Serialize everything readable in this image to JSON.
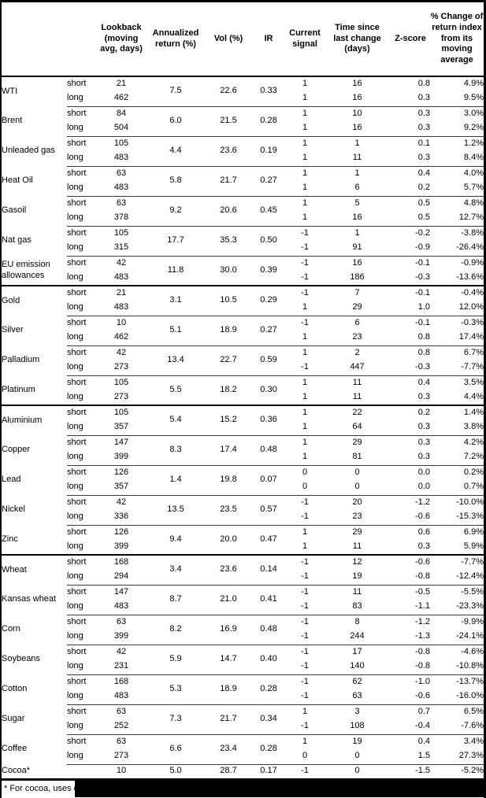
{
  "table": {
    "columns": {
      "name": "",
      "term": "",
      "lookback": "Lookback\n(moving\navg, days)",
      "annualized": "Annualized\nreturn (%)",
      "vol": "Vol (%)",
      "ir": "IR",
      "signal": "Current\nsignal",
      "time_since": "Time since\nlast change\n(days)",
      "zscore": "Z-score",
      "pct_change": "% Change of\nreturn index\nfrom its\nmoving\naverage"
    },
    "sections": [
      {
        "rows": [
          {
            "name": "WTI",
            "annualized": "7.5",
            "vol": "22.6",
            "ir": "0.33",
            "legs": [
              {
                "term": "short",
                "lookback": "21",
                "signal": "1",
                "time_since": "16",
                "zscore": "0.8",
                "pct_change": "4.9%"
              },
              {
                "term": "long",
                "lookback": "462",
                "signal": "1",
                "time_since": "16",
                "zscore": "0.3",
                "pct_change": "9.5%"
              }
            ]
          },
          {
            "name": "Brent",
            "annualized": "6.0",
            "vol": "21.5",
            "ir": "0.28",
            "legs": [
              {
                "term": "short",
                "lookback": "84",
                "signal": "1",
                "time_since": "10",
                "zscore": "0.3",
                "pct_change": "3.0%"
              },
              {
                "term": "long",
                "lookback": "504",
                "signal": "1",
                "time_since": "16",
                "zscore": "0.3",
                "pct_change": "9.2%"
              }
            ]
          },
          {
            "name": "Unleaded gas",
            "annualized": "4.4",
            "vol": "23.6",
            "ir": "0.19",
            "legs": [
              {
                "term": "short",
                "lookback": "105",
                "signal": "1",
                "time_since": "1",
                "zscore": "0.1",
                "pct_change": "1.2%"
              },
              {
                "term": "long",
                "lookback": "483",
                "signal": "1",
                "time_since": "11",
                "zscore": "0.3",
                "pct_change": "8.4%"
              }
            ]
          },
          {
            "name": "Heat Oil",
            "annualized": "5.8",
            "vol": "21.7",
            "ir": "0.27",
            "legs": [
              {
                "term": "short",
                "lookback": "63",
                "signal": "1",
                "time_since": "1",
                "zscore": "0.4",
                "pct_change": "4.0%"
              },
              {
                "term": "long",
                "lookback": "483",
                "signal": "1",
                "time_since": "6",
                "zscore": "0.2",
                "pct_change": "5.7%"
              }
            ]
          },
          {
            "name": "Gasoil",
            "annualized": "9.2",
            "vol": "20.6",
            "ir": "0.45",
            "legs": [
              {
                "term": "short",
                "lookback": "63",
                "signal": "1",
                "time_since": "5",
                "zscore": "0.5",
                "pct_change": "4.8%"
              },
              {
                "term": "long",
                "lookback": "378",
                "signal": "1",
                "time_since": "16",
                "zscore": "0.5",
                "pct_change": "12.7%"
              }
            ]
          },
          {
            "name": "Nat gas",
            "annualized": "17.7",
            "vol": "35.3",
            "ir": "0.50",
            "legs": [
              {
                "term": "short",
                "lookback": "105",
                "signal": "-1",
                "time_since": "1",
                "zscore": "-0.2",
                "pct_change": "-3.8%"
              },
              {
                "term": "long",
                "lookback": "315",
                "signal": "-1",
                "time_since": "91",
                "zscore": "-0.9",
                "pct_change": "-26.4%"
              }
            ]
          },
          {
            "name": "EU emission allowances",
            "annualized": "11.8",
            "vol": "30.0",
            "ir": "0.39",
            "legs": [
              {
                "term": "short",
                "lookback": "42",
                "signal": "-1",
                "time_since": "16",
                "zscore": "-0.1",
                "pct_change": "-0.9%"
              },
              {
                "term": "long",
                "lookback": "483",
                "signal": "-1",
                "time_since": "186",
                "zscore": "-0.3",
                "pct_change": "-13.6%"
              }
            ]
          }
        ]
      },
      {
        "rows": [
          {
            "name": "Gold",
            "annualized": "3.1",
            "vol": "10.5",
            "ir": "0.29",
            "legs": [
              {
                "term": "short",
                "lookback": "21",
                "signal": "-1",
                "time_since": "7",
                "zscore": "-0.1",
                "pct_change": "-0.4%"
              },
              {
                "term": "long",
                "lookback": "483",
                "signal": "1",
                "time_since": "29",
                "zscore": "1.0",
                "pct_change": "12.0%"
              }
            ]
          },
          {
            "name": "Silver",
            "annualized": "5.1",
            "vol": "18.9",
            "ir": "0.27",
            "legs": [
              {
                "term": "short",
                "lookback": "10",
                "signal": "-1",
                "time_since": "6",
                "zscore": "-0.1",
                "pct_change": "-0.3%"
              },
              {
                "term": "long",
                "lookback": "462",
                "signal": "1",
                "time_since": "23",
                "zscore": "0.8",
                "pct_change": "17.4%"
              }
            ]
          },
          {
            "name": "Palladium",
            "annualized": "13.4",
            "vol": "22.7",
            "ir": "0.59",
            "legs": [
              {
                "term": "short",
                "lookback": "42",
                "signal": "1",
                "time_since": "2",
                "zscore": "0.8",
                "pct_change": "6.7%"
              },
              {
                "term": "long",
                "lookback": "273",
                "signal": "-1",
                "time_since": "447",
                "zscore": "-0.3",
                "pct_change": "-7.7%"
              }
            ]
          },
          {
            "name": "Platinum",
            "annualized": "5.5",
            "vol": "18.2",
            "ir": "0.30",
            "legs": [
              {
                "term": "short",
                "lookback": "105",
                "signal": "1",
                "time_since": "11",
                "zscore": "0.4",
                "pct_change": "3.5%"
              },
              {
                "term": "long",
                "lookback": "273",
                "signal": "1",
                "time_since": "11",
                "zscore": "0.3",
                "pct_change": "4.4%"
              }
            ]
          }
        ]
      },
      {
        "rows": [
          {
            "name": "Aluminium",
            "annualized": "5.4",
            "vol": "15.2",
            "ir": "0.36",
            "legs": [
              {
                "term": "short",
                "lookback": "105",
                "signal": "1",
                "time_since": "22",
                "zscore": "0.2",
                "pct_change": "1.4%"
              },
              {
                "term": "long",
                "lookback": "357",
                "signal": "1",
                "time_since": "64",
                "zscore": "0.3",
                "pct_change": "3.8%"
              }
            ]
          },
          {
            "name": "Copper",
            "annualized": "8.3",
            "vol": "17.4",
            "ir": "0.48",
            "legs": [
              {
                "term": "short",
                "lookback": "147",
                "signal": "1",
                "time_since": "29",
                "zscore": "0.3",
                "pct_change": "4.2%"
              },
              {
                "term": "long",
                "lookback": "399",
                "signal": "1",
                "time_since": "81",
                "zscore": "0.3",
                "pct_change": "7.2%"
              }
            ]
          },
          {
            "name": "Lead",
            "annualized": "1.4",
            "vol": "19.8",
            "ir": "0.07",
            "legs": [
              {
                "term": "short",
                "lookback": "126",
                "signal": "0",
                "time_since": "0",
                "zscore": "0.0",
                "pct_change": "0.2%"
              },
              {
                "term": "long",
                "lookback": "357",
                "signal": "0",
                "time_since": "0",
                "zscore": "0.0",
                "pct_change": "0.7%"
              }
            ]
          },
          {
            "name": "Nickel",
            "annualized": "13.5",
            "vol": "23.5",
            "ir": "0.57",
            "legs": [
              {
                "term": "short",
                "lookback": "42",
                "signal": "-1",
                "time_since": "20",
                "zscore": "-1.2",
                "pct_change": "-10.0%"
              },
              {
                "term": "long",
                "lookback": "336",
                "signal": "-1",
                "time_since": "23",
                "zscore": "-0.6",
                "pct_change": "-15.3%"
              }
            ]
          },
          {
            "name": "Zinc",
            "annualized": "9.4",
            "vol": "20.0",
            "ir": "0.47",
            "legs": [
              {
                "term": "short",
                "lookback": "126",
                "signal": "1",
                "time_since": "29",
                "zscore": "0.6",
                "pct_change": "6.9%"
              },
              {
                "term": "long",
                "lookback": "399",
                "signal": "1",
                "time_since": "11",
                "zscore": "0.3",
                "pct_change": "5.9%"
              }
            ]
          }
        ]
      },
      {
        "rows": [
          {
            "name": "Wheat",
            "annualized": "3.4",
            "vol": "23.6",
            "ir": "0.14",
            "legs": [
              {
                "term": "short",
                "lookback": "168",
                "signal": "-1",
                "time_since": "12",
                "zscore": "-0.6",
                "pct_change": "-7.7%"
              },
              {
                "term": "long",
                "lookback": "294",
                "signal": "-1",
                "time_since": "19",
                "zscore": "-0.8",
                "pct_change": "-12.4%"
              }
            ]
          },
          {
            "name": "Kansas wheat",
            "annualized": "8.7",
            "vol": "21.0",
            "ir": "0.41",
            "legs": [
              {
                "term": "short",
                "lookback": "147",
                "signal": "-1",
                "time_since": "11",
                "zscore": "-0.5",
                "pct_change": "-5.5%"
              },
              {
                "term": "long",
                "lookback": "483",
                "signal": "-1",
                "time_since": "83",
                "zscore": "-1.1",
                "pct_change": "-23.3%"
              }
            ]
          },
          {
            "name": "Corn",
            "annualized": "8.2",
            "vol": "16.9",
            "ir": "0.48",
            "legs": [
              {
                "term": "short",
                "lookback": "63",
                "signal": "-1",
                "time_since": "8",
                "zscore": "-1.2",
                "pct_change": "-9.9%"
              },
              {
                "term": "long",
                "lookback": "399",
                "signal": "-1",
                "time_since": "244",
                "zscore": "-1.3",
                "pct_change": "-24.1%"
              }
            ]
          },
          {
            "name": "Soybeans",
            "annualized": "5.9",
            "vol": "14.7",
            "ir": "0.40",
            "legs": [
              {
                "term": "short",
                "lookback": "42",
                "signal": "-1",
                "time_since": "17",
                "zscore": "-0.8",
                "pct_change": "-4.6%"
              },
              {
                "term": "long",
                "lookback": "231",
                "signal": "-1",
                "time_since": "140",
                "zscore": "-0.8",
                "pct_change": "-10.8%"
              }
            ]
          },
          {
            "name": "Cotton",
            "annualized": "5.3",
            "vol": "18.9",
            "ir": "0.28",
            "legs": [
              {
                "term": "short",
                "lookback": "168",
                "signal": "-1",
                "time_since": "62",
                "zscore": "-1.0",
                "pct_change": "-13.7%"
              },
              {
                "term": "long",
                "lookback": "483",
                "signal": "-1",
                "time_since": "63",
                "zscore": "-0.6",
                "pct_change": "-16.0%"
              }
            ]
          },
          {
            "name": "Sugar",
            "annualized": "7.3",
            "vol": "21.7",
            "ir": "0.34",
            "legs": [
              {
                "term": "short",
                "lookback": "63",
                "signal": "1",
                "time_since": "3",
                "zscore": "0.7",
                "pct_change": "6.5%"
              },
              {
                "term": "long",
                "lookback": "252",
                "signal": "-1",
                "time_since": "108",
                "zscore": "-0.4",
                "pct_change": "-7.6%"
              }
            ]
          },
          {
            "name": "Coffee",
            "annualized": "6.6",
            "vol": "23.4",
            "ir": "0.28",
            "legs": [
              {
                "term": "short",
                "lookback": "63",
                "signal": "1",
                "time_since": "19",
                "zscore": "0.4",
                "pct_change": "3.4%"
              },
              {
                "term": "long",
                "lookback": "273",
                "signal": "0",
                "time_since": "0",
                "zscore": "1.5",
                "pct_change": "27.3%"
              }
            ]
          },
          {
            "name": "Cocoa*",
            "annualized": "5.0",
            "vol": "28.7",
            "ir": "0.17",
            "legs": [
              {
                "term": "",
                "lookback": "10",
                "signal": "-1",
                "time_since": "0",
                "zscore": "-1.5",
                "pct_change": "-5.2%"
              }
            ]
          }
        ]
      }
    ]
  },
  "footnote": "* For cocoa, uses o"
}
